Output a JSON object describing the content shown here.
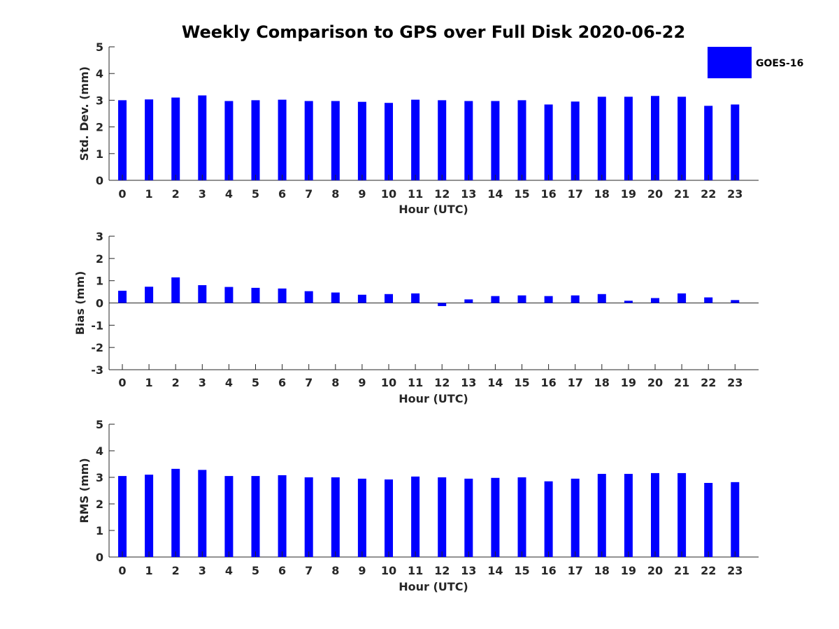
{
  "figure": {
    "title": "Weekly Comparison to GPS over Full Disk 2020-06-22"
  },
  "legend": {
    "label": "GOES-16",
    "color": "#0000ff"
  },
  "chart_data": [
    {
      "type": "bar",
      "name": "std-dev",
      "title": "Weekly Comparison to GPS over Full Disk 2020-06-22",
      "xlabel": "Hour (UTC)",
      "ylabel": "Std. Dev. (mm)",
      "ylim": [
        0,
        5
      ],
      "yticks": [
        "0",
        "1",
        "2",
        "3",
        "4",
        "5"
      ],
      "categories": [
        "0",
        "1",
        "2",
        "3",
        "4",
        "5",
        "6",
        "7",
        "8",
        "9",
        "10",
        "11",
        "12",
        "13",
        "14",
        "15",
        "16",
        "17",
        "18",
        "19",
        "20",
        "21",
        "22",
        "23"
      ],
      "series": [
        {
          "name": "GOES-16",
          "color": "#0000ff",
          "values": [
            3.0,
            3.03,
            3.1,
            3.18,
            2.97,
            3.0,
            3.02,
            2.97,
            2.97,
            2.94,
            2.9,
            3.02,
            3.0,
            2.97,
            2.97,
            3.0,
            2.84,
            2.95,
            3.13,
            3.13,
            3.16,
            3.13,
            2.79,
            2.84
          ]
        }
      ]
    },
    {
      "type": "bar",
      "name": "bias",
      "xlabel": "Hour (UTC)",
      "ylabel": "Bias (mm)",
      "ylim": [
        -3,
        3
      ],
      "yticks": [
        "-3",
        "-2",
        "-1",
        "0",
        "1",
        "2",
        "3"
      ],
      "categories": [
        "0",
        "1",
        "2",
        "3",
        "4",
        "5",
        "6",
        "7",
        "8",
        "9",
        "10",
        "11",
        "12",
        "13",
        "14",
        "15",
        "16",
        "17",
        "18",
        "19",
        "20",
        "21",
        "22",
        "23"
      ],
      "series": [
        {
          "name": "GOES-16",
          "color": "#0000ff",
          "values": [
            0.55,
            0.73,
            1.15,
            0.8,
            0.72,
            0.68,
            0.65,
            0.53,
            0.47,
            0.37,
            0.4,
            0.43,
            -0.14,
            0.16,
            0.31,
            0.34,
            0.31,
            0.34,
            0.4,
            0.1,
            0.22,
            0.43,
            0.25,
            0.13
          ]
        }
      ]
    },
    {
      "type": "bar",
      "name": "rms",
      "xlabel": "Hour (UTC)",
      "ylabel": "RMS (mm)",
      "ylim": [
        0,
        5
      ],
      "yticks": [
        "0",
        "1",
        "2",
        "3",
        "4",
        "5"
      ],
      "categories": [
        "0",
        "1",
        "2",
        "3",
        "4",
        "5",
        "6",
        "7",
        "8",
        "9",
        "10",
        "11",
        "12",
        "13",
        "14",
        "15",
        "16",
        "17",
        "18",
        "19",
        "20",
        "21",
        "22",
        "23"
      ],
      "series": [
        {
          "name": "GOES-16",
          "color": "#0000ff",
          "values": [
            3.05,
            3.1,
            3.32,
            3.28,
            3.05,
            3.05,
            3.08,
            3.0,
            3.0,
            2.95,
            2.92,
            3.03,
            3.0,
            2.95,
            2.98,
            3.0,
            2.85,
            2.95,
            3.13,
            3.13,
            3.16,
            3.16,
            2.79,
            2.82
          ]
        }
      ]
    }
  ]
}
